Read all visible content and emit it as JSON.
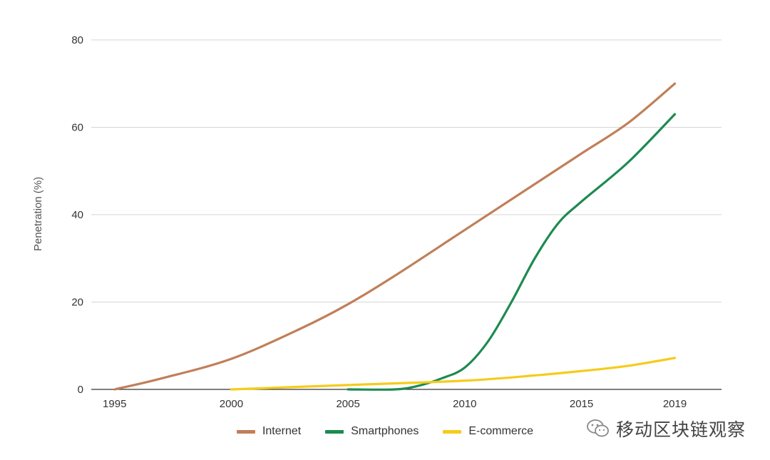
{
  "chart_data": {
    "type": "line",
    "ylabel": "Penetration (%)",
    "xlabel": "",
    "xlim": [
      1994,
      2021
    ],
    "ylim": [
      0,
      80
    ],
    "x_ticks": [
      "1995",
      "2000",
      "2005",
      "2010",
      "2015",
      "2019"
    ],
    "y_ticks": [
      "0",
      "20",
      "40",
      "60",
      "80"
    ],
    "grid": true,
    "legend_position": "bottom",
    "series": [
      {
        "name": "Internet",
        "color": "#c17f59",
        "x": [
          1995,
          1997,
          2000,
          2003,
          2005,
          2007,
          2010,
          2013,
          2015,
          2017,
          2019
        ],
        "y": [
          0,
          2.5,
          7,
          14,
          19.5,
          26,
          36.5,
          47,
          54,
          61,
          70
        ]
      },
      {
        "name": "Smartphones",
        "color": "#1e8a50",
        "x": [
          2005,
          2007,
          2008,
          2009,
          2010,
          2011,
          2012,
          2013,
          2014,
          2015,
          2017,
          2019
        ],
        "y": [
          0,
          0,
          0.8,
          2.5,
          5,
          11,
          20,
          30,
          38,
          43,
          52,
          63
        ]
      },
      {
        "name": "E-commerce",
        "color": "#f5cc1b",
        "x": [
          2000,
          2005,
          2010,
          2013,
          2015,
          2017,
          2019
        ],
        "y": [
          0,
          1,
          2,
          3.2,
          4.2,
          5.4,
          7.2
        ]
      }
    ]
  },
  "watermark": {
    "text": "移动区块链观察",
    "icon": "wechat-icon"
  }
}
